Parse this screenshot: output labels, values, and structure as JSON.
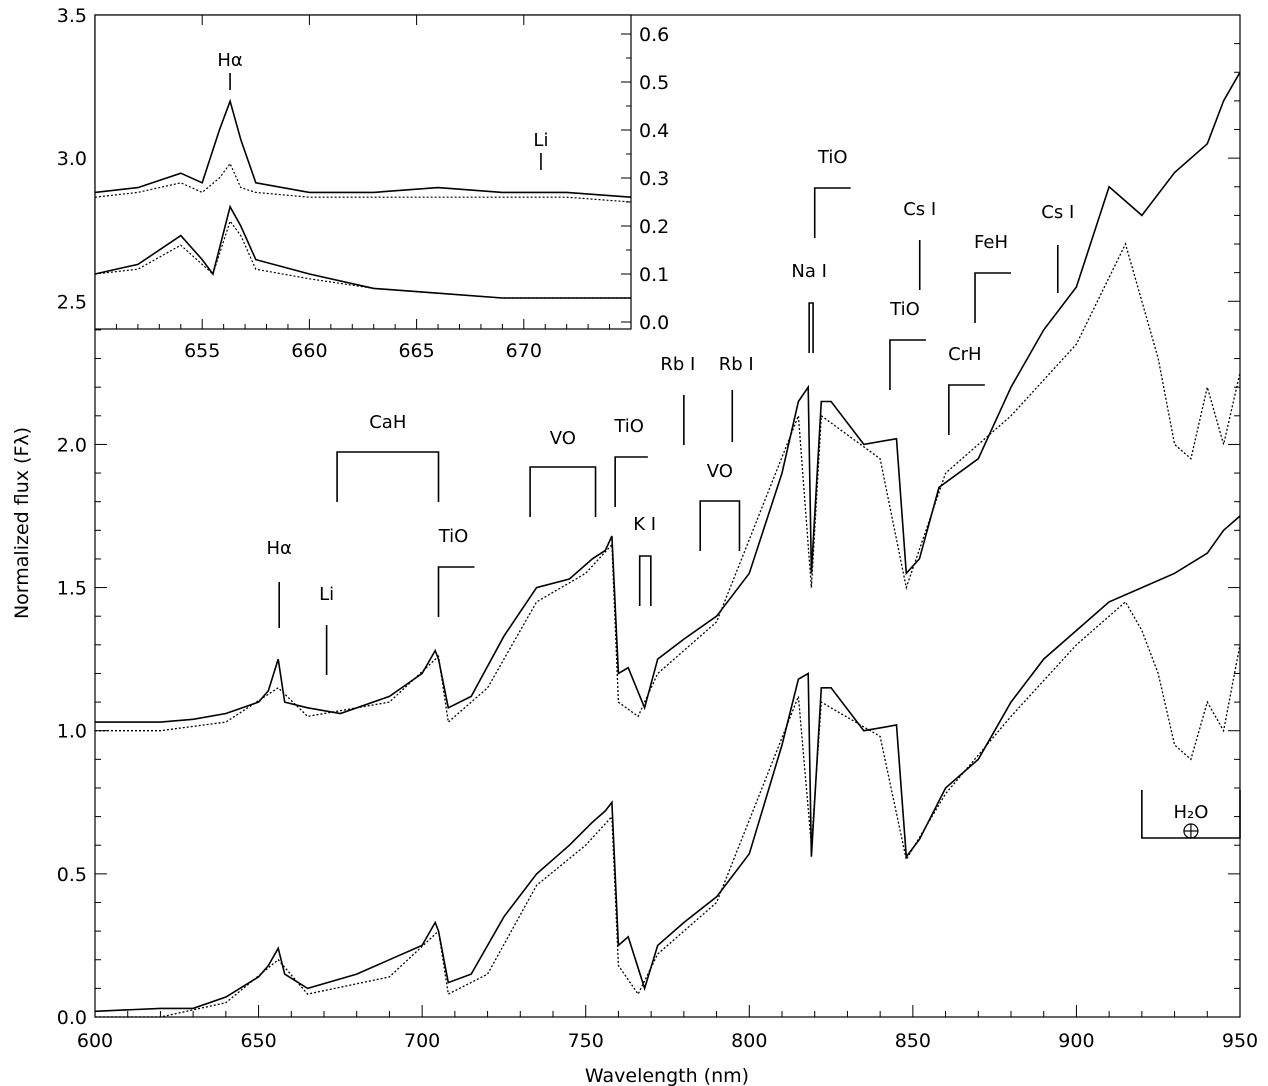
{
  "chart_data": {
    "type": "line",
    "xlabel": "Wavelength (nm)",
    "ylabel": "Normalized flux (Fλ)",
    "xlim": [
      600,
      950
    ],
    "ylim": [
      0,
      3.5
    ],
    "x_ticks": [
      600,
      650,
      700,
      750,
      800,
      850,
      900,
      950
    ],
    "y_ticks": [
      0.0,
      0.5,
      1.0,
      1.5,
      2.0,
      2.5,
      3.0,
      3.5
    ],
    "x_tick_labels": [
      "600",
      "650",
      "700",
      "750",
      "800",
      "850",
      "900",
      "950"
    ],
    "y_tick_labels": [
      "0.0",
      "0.5",
      "1.0",
      "1.5",
      "2.0",
      "2.5",
      "3.0",
      "3.5"
    ],
    "series": [
      {
        "style": "solid",
        "x": [
          600,
          610,
          620,
          630,
          640,
          650,
          653,
          656,
          658,
          665,
          675,
          690,
          700,
          704,
          705,
          708,
          715,
          725,
          735,
          745,
          752,
          756,
          758,
          760,
          763,
          768,
          772,
          780,
          790,
          800,
          810,
          815,
          818,
          819,
          822,
          825,
          835,
          845,
          848,
          852,
          858,
          870,
          880,
          890,
          900,
          910,
          920,
          930,
          940,
          945,
          950
        ],
        "y": [
          1.03,
          1.03,
          1.03,
          1.04,
          1.06,
          1.1,
          1.14,
          1.25,
          1.1,
          1.08,
          1.06,
          1.12,
          1.2,
          1.28,
          1.25,
          1.08,
          1.12,
          1.33,
          1.5,
          1.53,
          1.6,
          1.63,
          1.68,
          1.2,
          1.22,
          1.08,
          1.25,
          1.32,
          1.4,
          1.55,
          1.9,
          2.15,
          2.2,
          1.55,
          2.15,
          2.15,
          2.0,
          2.02,
          1.55,
          1.6,
          1.85,
          1.95,
          2.2,
          2.4,
          2.55,
          2.9,
          2.8,
          2.95,
          3.05,
          3.2,
          3.3
        ]
      },
      {
        "style": "dotted",
        "x": [
          600,
          620,
          640,
          656,
          665,
          690,
          705,
          708,
          720,
          735,
          750,
          758,
          760,
          766,
          772,
          790,
          815,
          819,
          822,
          840,
          848,
          860,
          880,
          900,
          915,
          920,
          925,
          930,
          935,
          940,
          945,
          950
        ],
        "y": [
          1.0,
          1.0,
          1.03,
          1.15,
          1.05,
          1.1,
          1.26,
          1.03,
          1.15,
          1.45,
          1.55,
          1.65,
          1.1,
          1.05,
          1.2,
          1.38,
          2.1,
          1.5,
          2.1,
          1.95,
          1.5,
          1.9,
          2.1,
          2.35,
          2.7,
          2.5,
          2.3,
          2.0,
          1.95,
          2.2,
          2.0,
          2.25
        ]
      },
      {
        "style": "solid",
        "x": [
          600,
          620,
          630,
          640,
          650,
          653,
          656,
          658,
          665,
          680,
          700,
          704,
          705,
          708,
          715,
          725,
          735,
          745,
          752,
          756,
          758,
          760,
          763,
          768,
          772,
          780,
          790,
          800,
          810,
          815,
          818,
          819,
          822,
          825,
          835,
          845,
          848,
          852,
          860,
          870,
          880,
          890,
          900,
          910,
          920,
          930,
          940,
          945,
          950
        ],
        "y": [
          0.02,
          0.03,
          0.03,
          0.07,
          0.14,
          0.18,
          0.24,
          0.15,
          0.1,
          0.15,
          0.25,
          0.33,
          0.3,
          0.12,
          0.15,
          0.35,
          0.5,
          0.6,
          0.68,
          0.72,
          0.75,
          0.25,
          0.28,
          0.1,
          0.25,
          0.33,
          0.42,
          0.57,
          0.95,
          1.18,
          1.2,
          0.56,
          1.15,
          1.15,
          1.0,
          1.02,
          0.56,
          0.62,
          0.8,
          0.9,
          1.1,
          1.25,
          1.35,
          1.45,
          1.5,
          1.55,
          1.62,
          1.7,
          1.75
        ]
      },
      {
        "style": "dotted",
        "x": [
          600,
          620,
          640,
          656,
          665,
          690,
          705,
          708,
          720,
          735,
          750,
          758,
          760,
          766,
          772,
          790,
          815,
          819,
          822,
          840,
          848,
          860,
          880,
          900,
          915,
          920,
          925,
          930,
          935,
          940,
          945,
          950
        ],
        "y": [
          0.0,
          0.0,
          0.05,
          0.2,
          0.08,
          0.14,
          0.3,
          0.08,
          0.15,
          0.46,
          0.6,
          0.7,
          0.18,
          0.08,
          0.22,
          0.4,
          1.12,
          0.6,
          1.1,
          0.98,
          0.55,
          0.78,
          1.05,
          1.3,
          1.45,
          1.35,
          1.2,
          0.95,
          0.9,
          1.1,
          1.0,
          1.3
        ]
      }
    ],
    "features": [
      {
        "label": "Hα",
        "x": 656.3
      },
      {
        "label": "Li",
        "x": 670.8
      },
      {
        "label": "CaH",
        "x": [
          674,
          705
        ]
      },
      {
        "label": "TiO",
        "x": [
          705,
          716
        ]
      },
      {
        "label": "VO",
        "x": [
          733,
          753
        ]
      },
      {
        "label": "TiO",
        "x": [
          759,
          769
        ]
      },
      {
        "label": "K I",
        "x": [
          766.5,
          769.9
        ]
      },
      {
        "label": "Rb I",
        "x": 780.0
      },
      {
        "label": "Rb I",
        "x": 794.8
      },
      {
        "label": "VO",
        "x": [
          785,
          797
        ]
      },
      {
        "label": "Na I",
        "x": [
          818.3,
          819.5
        ]
      },
      {
        "label": "TiO",
        "x": [
          820,
          831
        ]
      },
      {
        "label": "TiO",
        "x": [
          843,
          854
        ]
      },
      {
        "label": "Cs I",
        "x": 852.1
      },
      {
        "label": "CrH",
        "x": [
          861,
          872
        ]
      },
      {
        "label": "FeH",
        "x": [
          869,
          880
        ]
      },
      {
        "label": "Cs I",
        "x": 894.3
      },
      {
        "label": "H₂O",
        "x": [
          920,
          950
        ]
      }
    ],
    "inset": {
      "type": "line",
      "xlim": [
        650,
        675
      ],
      "y_ticks": [
        0.0,
        0.1,
        0.2,
        0.3,
        0.4,
        0.5,
        0.6
      ],
      "x_ticks": [
        655,
        660,
        665,
        670
      ],
      "x_tick_labels": [
        "655",
        "660",
        "665",
        "670"
      ],
      "y_tick_labels": [
        "0.0",
        "0.1",
        "0.2",
        "0.3",
        "0.4",
        "0.5",
        "0.6"
      ],
      "series": [
        {
          "style": "solid",
          "x": [
            650,
            652,
            654,
            655,
            655.8,
            656.3,
            656.8,
            657.5,
            660,
            663,
            666,
            669,
            672,
            675
          ],
          "y": [
            0.27,
            0.28,
            0.31,
            0.29,
            0.4,
            0.46,
            0.38,
            0.29,
            0.27,
            0.27,
            0.28,
            0.27,
            0.27,
            0.26
          ]
        },
        {
          "style": "dotted",
          "x": [
            650,
            652,
            654,
            655,
            655.8,
            656.3,
            656.8,
            657.5,
            660,
            663,
            666,
            669,
            672,
            675
          ],
          "y": [
            0.26,
            0.27,
            0.29,
            0.27,
            0.3,
            0.33,
            0.28,
            0.27,
            0.26,
            0.26,
            0.26,
            0.26,
            0.26,
            0.25
          ]
        },
        {
          "style": "solid",
          "x": [
            650,
            652,
            654,
            655,
            655.5,
            656.3,
            656.8,
            657.5,
            660,
            663,
            666,
            669,
            672,
            675
          ],
          "y": [
            0.1,
            0.12,
            0.18,
            0.13,
            0.1,
            0.24,
            0.2,
            0.13,
            0.1,
            0.07,
            0.06,
            0.05,
            0.05,
            0.05
          ]
        },
        {
          "style": "dotted",
          "x": [
            650,
            652,
            654,
            655,
            655.5,
            656.3,
            656.8,
            657.5,
            660,
            663,
            666,
            669,
            672,
            675
          ],
          "y": [
            0.1,
            0.11,
            0.16,
            0.12,
            0.1,
            0.21,
            0.18,
            0.11,
            0.09,
            0.07,
            0.06,
            0.05,
            0.05,
            0.05
          ]
        }
      ],
      "features": [
        {
          "label": "Hα",
          "x": 656.3
        },
        {
          "label": "Li",
          "x": 670.8
        }
      ]
    }
  }
}
